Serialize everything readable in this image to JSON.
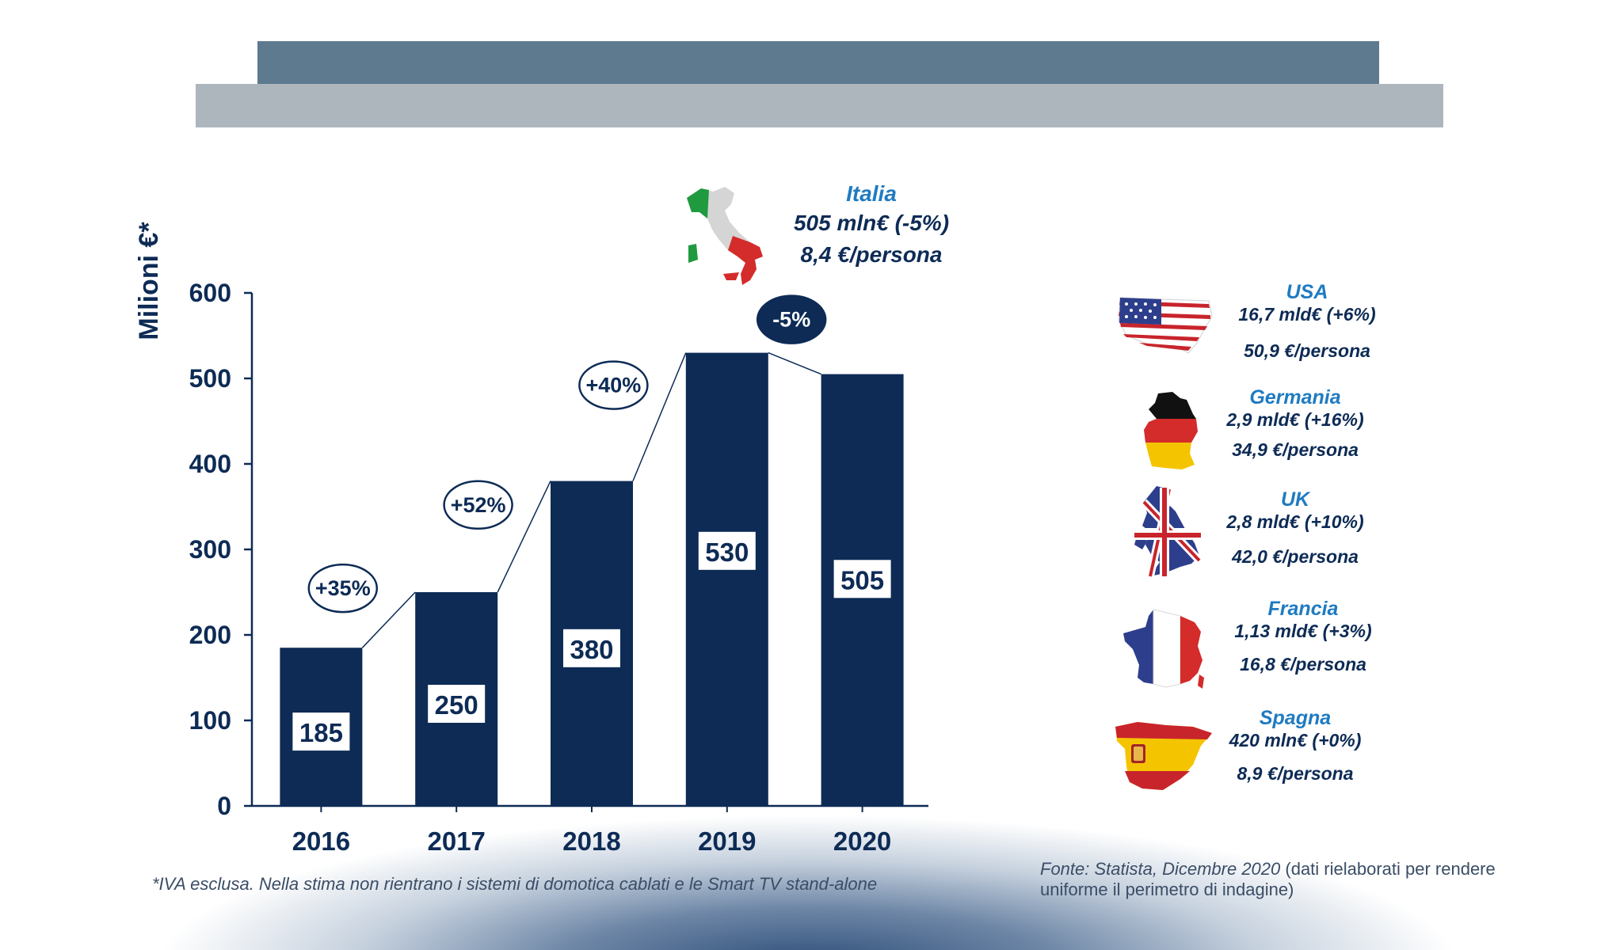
{
  "chart_data": {
    "type": "bar",
    "ylabel": "Milioni €*",
    "ylim": [
      0,
      600
    ],
    "yticks": [
      "0",
      "100",
      "200",
      "300",
      "400",
      "500",
      "600"
    ],
    "categories": [
      "2016",
      "2017",
      "2018",
      "2019",
      "2020"
    ],
    "values": [
      185,
      250,
      380,
      530,
      505
    ],
    "value_labels": [
      "185",
      "250",
      "380",
      "530",
      "505"
    ],
    "growth": [
      "+35%",
      "+52%",
      "+40%",
      "-5%"
    ],
    "bar_color": "#0d2b55"
  },
  "italia": {
    "name": "Italia",
    "line1": "505 mln€ (-5%)",
    "line2": "8,4 €/persona"
  },
  "countries": [
    {
      "name": "USA",
      "line1": "16,7 mld€ (+6%)",
      "line2": "50,9 €/persona"
    },
    {
      "name": "Germania",
      "line1": "2,9 mld€ (+16%)",
      "line2": "34,9 €/persona"
    },
    {
      "name": "UK",
      "line1": "2,8 mld€ (+10%)",
      "line2": "42,0 €/persona"
    },
    {
      "name": "Francia",
      "line1": "1,13 mld€ (+3%)",
      "line2": "16,8 €/persona"
    },
    {
      "name": "Spagna",
      "line1": "420 mln€ (+0%)",
      "line2": "8,9 €/persona"
    }
  ],
  "footnote": "*IVA esclusa. Nella stima non rientrano i sistemi di domotica cablati e le Smart TV stand-alone",
  "source_italic": "Fonte: Statista, Dicembre 2020",
  "source_rest": " (dati rielaborati per rendere uniforme il perimetro di indagine)"
}
